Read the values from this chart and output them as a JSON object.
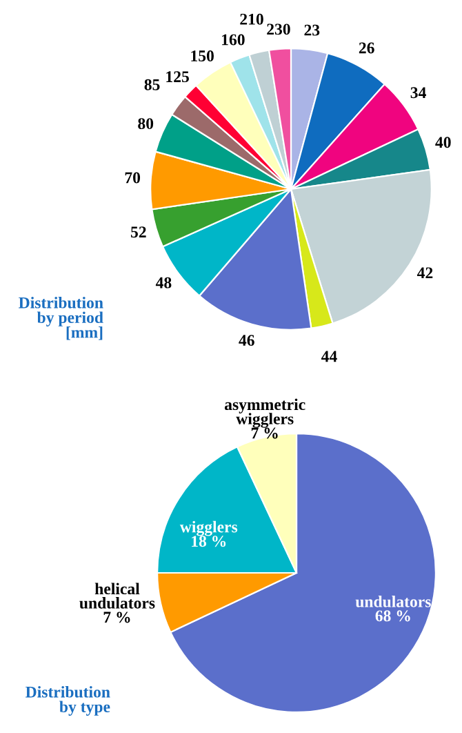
{
  "chart_data": [
    {
      "type": "pie",
      "title": "Distribution\nby period\n[mm]",
      "categories": [
        "23",
        "26",
        "34",
        "40",
        "42",
        "44",
        "46",
        "48",
        "52",
        "70",
        "80",
        "85",
        "125",
        "150",
        "160",
        "210",
        "230"
      ],
      "values": [
        4.2,
        7.4,
        6.4,
        4.8,
        22.4,
        2.5,
        13.6,
        7.0,
        4.4,
        6.6,
        4.6,
        2.5,
        1.8,
        4.7,
        2.3,
        2.3,
        2.5
      ],
      "colors": [
        "#aab4e6",
        "#0f6cbf",
        "#f0047f",
        "#16878a",
        "#c3d3d6",
        "#d7e81a",
        "#5b6fcb",
        "#00b6c8",
        "#37a02f",
        "#ff9a00",
        "#00a088",
        "#9c6a6a",
        "#ff0033",
        "#ffffbb",
        "#9fe3ea",
        "#bfd0d4",
        "#f04f9f"
      ]
    },
    {
      "type": "pie",
      "title": "Distribution\nby type",
      "categories": [
        "undulators",
        "helical\nundulators",
        "wigglers",
        "asymmetric\nwigglers"
      ],
      "values": [
        68,
        7,
        18,
        7
      ],
      "value_labels": [
        "68 %",
        "7 %",
        "18 %",
        "7 %"
      ],
      "colors": [
        "#5b6fcb",
        "#ff9a00",
        "#00b6c8",
        "#ffffbb"
      ]
    }
  ]
}
